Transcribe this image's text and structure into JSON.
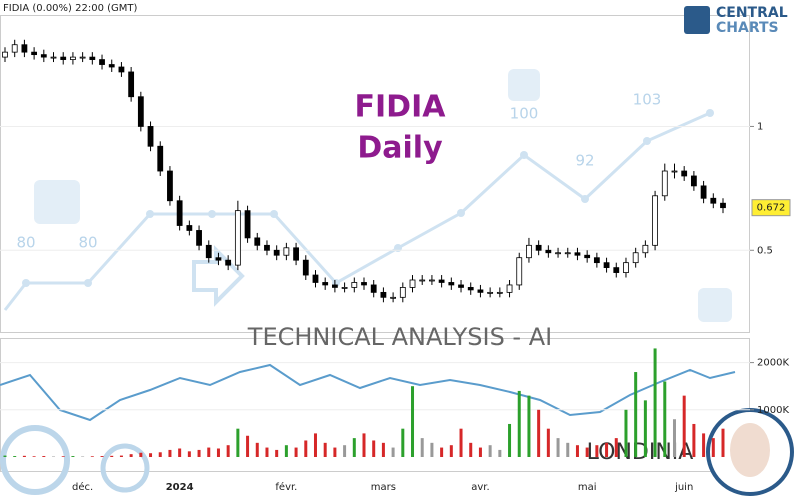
{
  "chart_data": {
    "type": "candlestick",
    "header": "FIDIA (0.00%) 22:00 (GMT)",
    "title": "FIDIA",
    "subtitle": "Daily",
    "banner": "TECHNICAL  ANALYSIS - AI",
    "brand": "LONDINIA",
    "logo": [
      "CENTRAL",
      "CHARTS"
    ],
    "watermark_labels": [
      80,
      80,
      100,
      92,
      103
    ],
    "categories": [
      null,
      null,
      null,
      null,
      null,
      null,
      null,
      null,
      "déc.",
      null,
      null,
      null,
      null,
      null,
      null,
      null,
      null,
      null,
      "2024",
      null,
      null,
      null,
      null,
      null,
      null,
      null,
      null,
      null,
      null,
      "févr.",
      null,
      null,
      null,
      null,
      null,
      null,
      null,
      null,
      null,
      "mars",
      null,
      null,
      null,
      null,
      null,
      null,
      null,
      null,
      null,
      "avr.",
      null,
      null,
      null,
      null,
      null,
      null,
      null,
      null,
      null,
      null,
      "mai",
      null,
      null,
      null,
      null,
      null,
      null,
      null,
      null,
      null,
      "juin",
      null,
      null,
      null,
      null
    ],
    "open": [
      1.28,
      1.3,
      1.33,
      1.3,
      1.29,
      1.28,
      1.28,
      1.27,
      1.28,
      1.28,
      1.27,
      1.25,
      1.24,
      1.22,
      1.12,
      1.0,
      0.92,
      0.82,
      0.7,
      0.6,
      0.58,
      0.52,
      0.47,
      0.46,
      0.44,
      0.66,
      0.55,
      0.52,
      0.5,
      0.48,
      0.51,
      0.46,
      0.4,
      0.37,
      0.36,
      0.35,
      0.35,
      0.37,
      0.36,
      0.33,
      0.31,
      0.31,
      0.35,
      0.38,
      0.38,
      0.38,
      0.37,
      0.36,
      0.35,
      0.34,
      0.33,
      0.33,
      0.33,
      0.36,
      0.47,
      0.52,
      0.5,
      0.49,
      0.49,
      0.49,
      0.48,
      0.47,
      0.45,
      0.43,
      0.41,
      0.45,
      0.49,
      0.52,
      0.72,
      0.82,
      0.82,
      0.8,
      0.76,
      0.71,
      0.69
    ],
    "high": [
      1.32,
      1.35,
      1.35,
      1.32,
      1.31,
      1.3,
      1.3,
      1.3,
      1.3,
      1.3,
      1.29,
      1.27,
      1.26,
      1.24,
      1.14,
      1.02,
      0.94,
      0.84,
      0.72,
      0.62,
      0.6,
      0.54,
      0.49,
      0.48,
      0.7,
      0.68,
      0.57,
      0.54,
      0.52,
      0.53,
      0.53,
      0.48,
      0.42,
      0.39,
      0.38,
      0.37,
      0.39,
      0.39,
      0.38,
      0.35,
      0.33,
      0.37,
      0.4,
      0.4,
      0.4,
      0.4,
      0.39,
      0.38,
      0.37,
      0.36,
      0.35,
      0.35,
      0.38,
      0.49,
      0.55,
      0.54,
      0.52,
      0.51,
      0.51,
      0.51,
      0.5,
      0.49,
      0.47,
      0.45,
      0.47,
      0.51,
      0.54,
      0.74,
      0.85,
      0.85,
      0.84,
      0.82,
      0.78,
      0.73,
      0.71
    ],
    "low": [
      1.26,
      1.28,
      1.28,
      1.27,
      1.26,
      1.26,
      1.25,
      1.25,
      1.26,
      1.25,
      1.23,
      1.22,
      1.2,
      1.1,
      0.98,
      0.9,
      0.8,
      0.68,
      0.58,
      0.56,
      0.5,
      0.45,
      0.44,
      0.42,
      0.42,
      0.53,
      0.5,
      0.48,
      0.46,
      0.46,
      0.44,
      0.38,
      0.35,
      0.34,
      0.33,
      0.33,
      0.33,
      0.34,
      0.31,
      0.29,
      0.29,
      0.29,
      0.33,
      0.36,
      0.36,
      0.35,
      0.34,
      0.33,
      0.32,
      0.31,
      0.31,
      0.31,
      0.31,
      0.34,
      0.45,
      0.48,
      0.47,
      0.47,
      0.47,
      0.46,
      0.45,
      0.43,
      0.41,
      0.39,
      0.39,
      0.43,
      0.47,
      0.5,
      0.7,
      0.79,
      0.78,
      0.74,
      0.69,
      0.67,
      0.65
    ],
    "close": [
      1.3,
      1.33,
      1.3,
      1.29,
      1.28,
      1.28,
      1.27,
      1.28,
      1.28,
      1.27,
      1.25,
      1.24,
      1.22,
      1.12,
      1.0,
      0.92,
      0.82,
      0.7,
      0.6,
      0.58,
      0.52,
      0.47,
      0.46,
      0.44,
      0.66,
      0.55,
      0.52,
      0.5,
      0.48,
      0.51,
      0.46,
      0.4,
      0.37,
      0.36,
      0.35,
      0.35,
      0.37,
      0.36,
      0.33,
      0.31,
      0.31,
      0.35,
      0.38,
      0.38,
      0.38,
      0.37,
      0.36,
      0.35,
      0.34,
      0.33,
      0.33,
      0.33,
      0.36,
      0.47,
      0.52,
      0.5,
      0.49,
      0.49,
      0.49,
      0.48,
      0.47,
      0.45,
      0.43,
      0.41,
      0.45,
      0.49,
      0.52,
      0.72,
      0.82,
      0.82,
      0.8,
      0.76,
      0.71,
      0.69,
      0.672
    ],
    "volume": [
      30000,
      20000,
      25000,
      15000,
      20000,
      10000,
      15000,
      20000,
      10000,
      15000,
      20000,
      25000,
      30000,
      60000,
      90000,
      80000,
      100000,
      150000,
      180000,
      120000,
      150000,
      200000,
      180000,
      250000,
      600000,
      450000,
      300000,
      200000,
      150000,
      250000,
      200000,
      350000,
      500000,
      300000,
      200000,
      250000,
      400000,
      500000,
      350000,
      300000,
      200000,
      600000,
      1500000,
      400000,
      300000,
      200000,
      250000,
      600000,
      300000,
      200000,
      250000,
      150000,
      700000,
      1400000,
      1300000,
      1000000,
      600000,
      400000,
      300000,
      250000,
      200000,
      250000,
      300000,
      400000,
      1000000,
      1800000,
      1200000,
      2300000,
      1600000,
      800000,
      1300000,
      700000,
      500000,
      400000,
      600000
    ],
    "ylim": [
      0.17,
      1.45
    ],
    "yticks": [
      1,
      0.5
    ],
    "volume_lim": [
      0,
      2500000
    ],
    "volume_ticks": [
      {
        "value": 2000000,
        "label": "2000K"
      },
      {
        "value": 1000000,
        "label": "1000K"
      }
    ],
    "grid": true,
    "up_color": "#ffffff",
    "down_color": "#000000",
    "volume_up_color": "#2ca02c",
    "volume_down_color": "#d62728",
    "volume_flat_color": "#999999",
    "last_price_color": "#ffee33"
  }
}
